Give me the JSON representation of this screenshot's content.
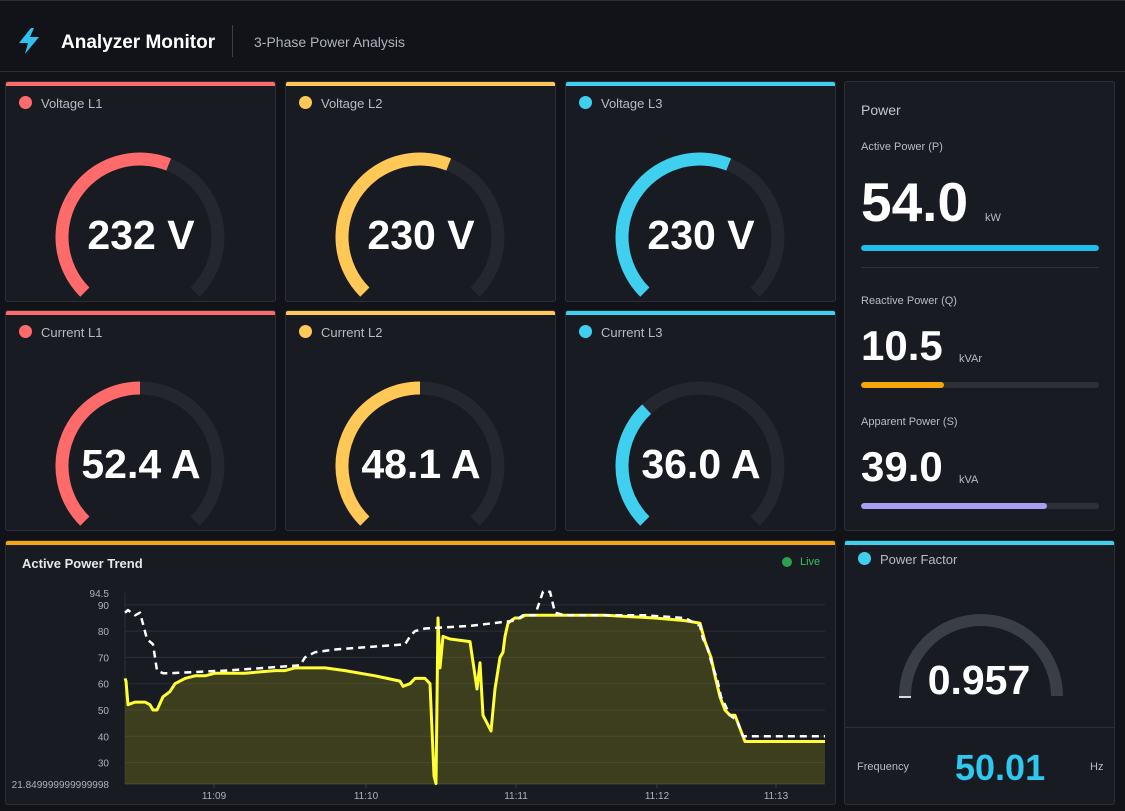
{
  "header": {
    "title": "Analyzer Monitor",
    "subtitle": "3-Phase Power Analysis",
    "icon": "lightning-bolt-icon",
    "icon_color": "#2fc2f0"
  },
  "colors": {
    "l1": "#ff6b6b",
    "l2": "#ffc857",
    "l3": "#3fd0f0",
    "track": "#24272e",
    "reactive": "#f5a60a",
    "apparent": "#a99ef2",
    "active": "#1ec0ea",
    "trend_accent": "#f5a60a",
    "trend_line": "#ffff33",
    "live": "#2e9f4f"
  },
  "gauges": [
    {
      "label": "Voltage L1",
      "value": "232 V",
      "fraction": 0.58,
      "color": "#ff6b6b"
    },
    {
      "label": "Voltage L2",
      "value": "230 V",
      "fraction": 0.58,
      "color": "#ffc857"
    },
    {
      "label": "Voltage L3",
      "value": "230 V",
      "fraction": 0.58,
      "color": "#3fd0f0"
    },
    {
      "label": "Current L1",
      "value": "52.4 A",
      "fraction": 0.5,
      "color": "#ff6b6b"
    },
    {
      "label": "Current L2",
      "value": "48.1 A",
      "fraction": 0.5,
      "color": "#ffc857"
    },
    {
      "label": "Current L3",
      "value": "36.0 A",
      "fraction": 0.34,
      "color": "#3fd0f0"
    }
  ],
  "power": {
    "title": "Power",
    "active": {
      "label": "Active Power (P)",
      "value": "54.0",
      "unit": "kW",
      "fraction": 1.0
    },
    "reactive": {
      "label": "Reactive Power (Q)",
      "value": "10.5",
      "unit": "kVAr",
      "fraction": 0.35
    },
    "apparent": {
      "label": "Apparent Power (S)",
      "value": "39.0",
      "unit": "kVA",
      "fraction": 0.78
    }
  },
  "trend": {
    "title": "Active Power Trend",
    "live_label": "Live"
  },
  "power_factor": {
    "label": "Power Factor",
    "value": "0.957",
    "fraction": 0.0,
    "frequency_label": "Frequency",
    "frequency_value": "50.01",
    "frequency_unit": "Hz"
  },
  "chart_data": {
    "type": "area",
    "title": "Active Power Trend",
    "ylim": [
      21.849999999999998,
      94.5
    ],
    "yticks": [
      "94.5",
      "90",
      "80",
      "70",
      "60",
      "50",
      "40",
      "30",
      "21.849999999999998"
    ],
    "xtick_labels": [
      "11:09",
      "11:10",
      "11:11",
      "11:12",
      "11:13"
    ],
    "grid": true,
    "series": [
      {
        "style": "solid-filled",
        "color": "#ffff33",
        "x": [
          0,
          1,
          3,
          10,
          20,
          25,
          28,
          32,
          38,
          45,
          50,
          60,
          70,
          80,
          90,
          100,
          120,
          150,
          160,
          170,
          180,
          190,
          200,
          220,
          250,
          275,
          278,
          285,
          290,
          300,
          305,
          309,
          311,
          313,
          315,
          318,
          325,
          345,
          352,
          355,
          358,
          362,
          366,
          370,
          375,
          378,
          380,
          383,
          386,
          390,
          395,
          400,
          405,
          410,
          440,
          480,
          530,
          560,
          575,
          580,
          586,
          590,
          595,
          600,
          605,
          610,
          620,
          660,
          700
        ],
        "y": [
          62,
          61,
          52,
          53,
          53,
          52,
          50,
          50,
          55,
          57,
          60,
          62,
          63,
          63,
          64,
          64,
          64,
          65,
          65,
          66,
          66,
          66,
          66,
          65,
          63,
          61,
          59,
          60,
          62,
          62,
          60,
          25,
          22,
          85,
          66,
          78,
          77,
          76,
          58,
          68,
          48,
          45,
          42,
          58,
          70,
          72,
          78,
          83,
          84,
          85,
          85,
          86,
          86,
          86,
          86,
          86,
          85,
          84,
          83,
          76,
          70,
          63,
          55,
          50,
          48,
          48,
          38,
          38,
          38
        ],
        "fill": true
      },
      {
        "style": "dashed",
        "color": "#ffffff",
        "x": [
          0,
          3,
          10,
          15,
          22,
          28,
          32,
          38,
          45,
          100,
          140,
          175,
          180,
          190,
          210,
          280,
          285,
          290,
          300,
          345,
          390,
          398,
          410,
          418,
          425,
          430,
          440,
          520,
          560,
          575,
          578,
          582,
          588,
          592,
          596,
          600,
          605,
          612,
          618,
          640,
          700
        ],
        "y": [
          87,
          88,
          86,
          87,
          77,
          75,
          65,
          64,
          64,
          65,
          66,
          67,
          70,
          72,
          73,
          75,
          78,
          80,
          81,
          82,
          84,
          86,
          86,
          95,
          95,
          87,
          86,
          86,
          85,
          82,
          77,
          74,
          66,
          62,
          55,
          52,
          48,
          46,
          40,
          40,
          40
        ],
        "fill": false
      }
    ]
  }
}
